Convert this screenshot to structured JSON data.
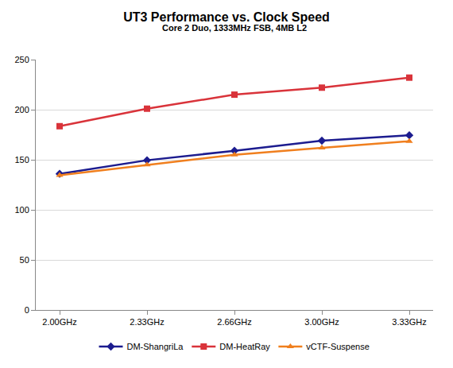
{
  "chart_data": {
    "type": "line",
    "title": "UT3 Performance vs. Clock Speed",
    "subtitle": "Core 2 Duo, 1333MHz FSB, 4MB L2",
    "categories": [
      "2.00GHz",
      "2.33GHz",
      "2.66GHz",
      "3.00GHz",
      "3.33GHz"
    ],
    "series": [
      {
        "name": "DM-ShangriLa",
        "color": "#1c1c8f",
        "marker": "diamond",
        "line_style": "solid",
        "values": [
          136,
          149.5,
          159,
          169,
          174.5
        ]
      },
      {
        "name": "DM-HeatRay",
        "color": "#d9333a",
        "marker": "square",
        "line_style": "solid",
        "values": [
          183.5,
          201,
          215,
          222,
          232
        ]
      },
      {
        "name": "vCTF-Suspense",
        "color": "#f07f1e",
        "marker": "triangle",
        "line_style": "solid",
        "values": [
          134.5,
          145,
          155,
          162,
          168.5
        ]
      }
    ],
    "ylim": [
      0,
      250
    ],
    "yticks": [
      0,
      50,
      100,
      150,
      200,
      250
    ],
    "grid": true,
    "legend": "bottom"
  }
}
